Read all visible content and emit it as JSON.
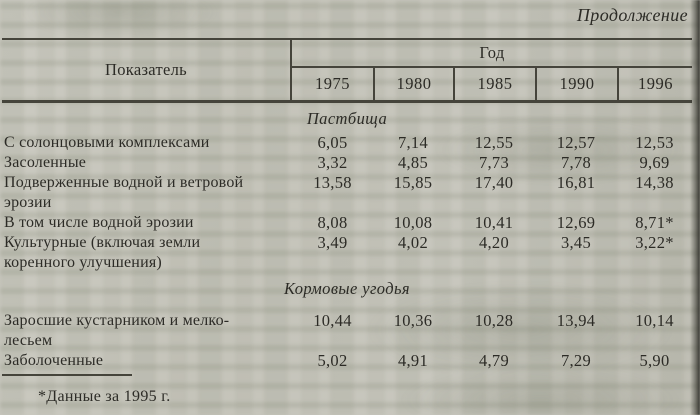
{
  "page": {
    "continuation_label": "Продолжение",
    "footnote": "*Данные за 1995 г."
  },
  "table": {
    "indicator_header": "Показатель",
    "year_header": "Год",
    "years": [
      "1975",
      "1980",
      "1985",
      "1990",
      "1996"
    ],
    "sections": [
      {
        "title": "Пастбища",
        "rows": [
          {
            "label": "С солонцовыми комплексами",
            "values": [
              "6,05",
              "7,14",
              "12,55",
              "12,57",
              "12,53"
            ]
          },
          {
            "label": "Засоленные",
            "values": [
              "3,32",
              "4,85",
              "7,73",
              "7,78",
              "9,69"
            ]
          },
          {
            "label": "Подверженные водной и ветровой\nэрозии",
            "values": [
              "13,58",
              "15,85",
              "17,40",
              "16,81",
              "14,38"
            ]
          },
          {
            "label": "В том числе водной эрозии",
            "values": [
              "8,08",
              "10,08",
              "10,41",
              "12,69",
              "8,71*"
            ]
          },
          {
            "label": "Культурные (включая земли\nкоренного улучшения)",
            "values": [
              "3,49",
              "4,02",
              "4,20",
              "3,45",
              "3,22*"
            ]
          }
        ]
      },
      {
        "title": "Кормовые угодья",
        "rows": [
          {
            "label": "Заросшие кустарником и мелко-\nлесьем",
            "values": [
              "10,44",
              "10,36",
              "10,28",
              "13,94",
              "10,14"
            ]
          },
          {
            "label": "Заболоченные",
            "values": [
              "5,02",
              "4,91",
              "4,79",
              "7,29",
              "5,90"
            ]
          }
        ]
      }
    ]
  }
}
